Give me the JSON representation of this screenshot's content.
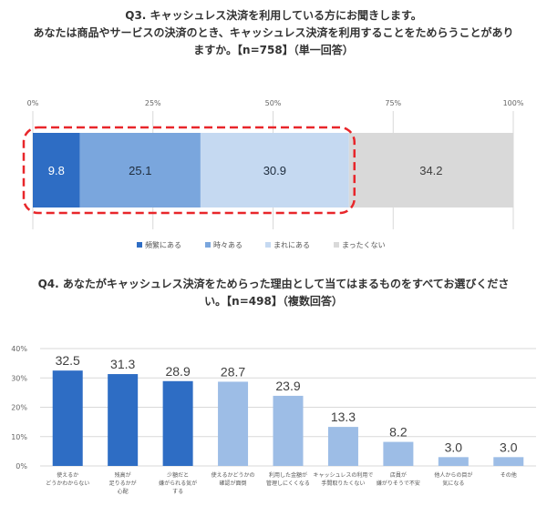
{
  "q3": {
    "title_lines": [
      "Q3. キャッシュレス決済を利用している方にお聞きします。",
      "あなたは商品やサービスの決済のとき、キャッシュレス決済を利用することをためらうことがあり",
      "ますか。【n=758】（単一回答）"
    ]
  },
  "q4": {
    "title_lines": [
      "Q4. あなたがキャッシュレス決済をためらった理由として当てはまるものをすべてお選びくださ",
      "い。【n=498】（複数回答）"
    ]
  },
  "chart_data": [
    {
      "type": "bar",
      "orientation": "horizontal-stacked",
      "x_ticks": [
        "0%",
        "25%",
        "50%",
        "75%",
        "100%"
      ],
      "xlim": [
        0,
        100
      ],
      "categories": [
        "頻繁にある",
        "時々ある",
        "まれにある",
        "まったくない"
      ],
      "values": [
        9.8,
        25.1,
        30.9,
        34.2
      ],
      "value_labels": [
        "9.8",
        "25.1",
        "30.9",
        "34.2"
      ],
      "colors": [
        "#2e6dc4",
        "#7aa6dd",
        "#c5d9f1",
        "#d9d9d9"
      ],
      "label_colors": [
        "#ffffff",
        "#1f2d3d",
        "#1f2d3d",
        "#404040"
      ],
      "highlight": {
        "covers": [
          "頻繁にある",
          "時々ある",
          "まれにある"
        ],
        "style": "red-dashed-rounded-box"
      },
      "legend": {
        "position": "bottom"
      },
      "grid": true
    },
    {
      "type": "bar",
      "orientation": "vertical",
      "y_ticks": [
        "0%",
        "10%",
        "20%",
        "30%",
        "40%"
      ],
      "ylim": [
        0,
        40
      ],
      "categories": [
        [
          "使えるか",
          "どうかわからない"
        ],
        [
          "残高が",
          "足りるかが",
          "心配"
        ],
        [
          "少額だと",
          "嫌がられる気が",
          "する"
        ],
        [
          "使えるかどうかの",
          "確認が面倒"
        ],
        [
          "利用した金額が",
          "管理しにくくなる"
        ],
        [
          "キャッシュレスの利用で",
          "手間取りたくない"
        ],
        [
          "店員が",
          "嫌がりそうで不安"
        ],
        [
          "他人からの目が",
          "気になる"
        ],
        [
          "その他"
        ]
      ],
      "values": [
        32.5,
        31.3,
        28.9,
        28.7,
        23.9,
        13.3,
        8.2,
        3.0,
        3.0
      ],
      "value_labels": [
        "32.5",
        "31.3",
        "28.9",
        "28.7",
        "23.9",
        "13.3",
        "8.2",
        "3.0",
        "3.0"
      ],
      "colors": [
        "#2e6dc4",
        "#2e6dc4",
        "#2e6dc4",
        "#9dbde6",
        "#9dbde6",
        "#9dbde6",
        "#9dbde6",
        "#9dbde6",
        "#9dbde6"
      ],
      "grid": true
    }
  ]
}
